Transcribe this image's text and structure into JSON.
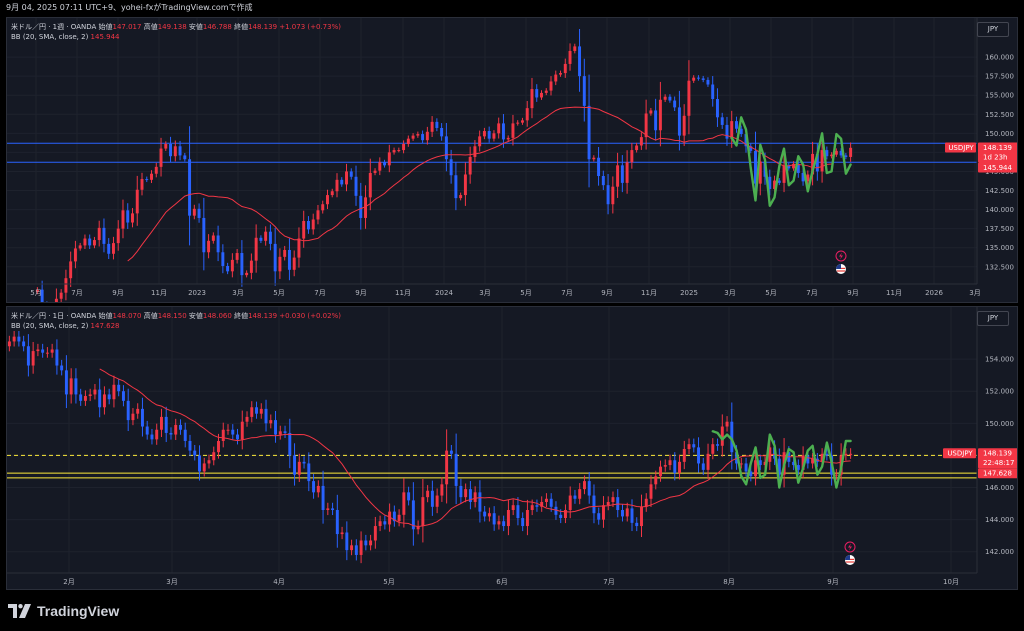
{
  "snapshot_info": "9月 04, 2025 07:11 UTC+9、yohei-fxがTradingView.comで作成",
  "brand": "TradingView",
  "colors": {
    "up": "#f23645",
    "down": "#2962ff",
    "bb": "#f23645",
    "annotation": "#4caf50",
    "hline_blue": "#2962ff",
    "hline_yellow": "#ffeb3b",
    "background": "#151924"
  },
  "icons": [
    "lightning-icon",
    "us-flag-icon",
    "logo-mark-icon"
  ],
  "top_chart": {
    "title": "米ドル／円 · 1週 · OANDA",
    "open_label": "始値",
    "open": "147.017",
    "high_label": "高値",
    "high": "149.138",
    "low_label": "安値",
    "low": "146.788",
    "close_label": "終値",
    "close": "148.139",
    "change": "+1.073 (+0.73%)",
    "indicator": "BB (20, SMA, close, 2)",
    "indicator_value": "145.944",
    "currency_button": "JPY",
    "price_tag_symbol": "USDJPY",
    "price_tag_value": "148.139",
    "price_tag_countdown": "1d 23h",
    "bb_tag_value": "145.944"
  },
  "bottom_chart": {
    "title": "米ドル／円 · 1日 · OANDA",
    "open_label": "始値",
    "open": "148.070",
    "high_label": "高値",
    "high": "148.150",
    "low_label": "安値",
    "low": "148.060",
    "close_label": "終値",
    "close": "148.139",
    "change": "+0.030 (+0.02%)",
    "indicator": "BB (20, SMA, close, 2)",
    "indicator_value": "147.628",
    "currency_button": "JPY",
    "price_tag_symbol": "USDJPY",
    "price_tag_value": "148.139",
    "price_tag_countdown": "22:48:17",
    "bb_tag_value": "147.628"
  },
  "chart_data": [
    {
      "type": "candlestick",
      "symbol": "USDJPY",
      "timeframe": "1W",
      "ylim": [
        130.5,
        162.5
      ],
      "y_ticks": [
        160.0,
        157.5,
        155.0,
        152.5,
        150.0,
        147.5,
        145.0,
        142.5,
        140.0,
        137.5,
        135.0,
        132.5
      ],
      "x_tick_labels": [
        "5月",
        "7月",
        "9月",
        "11月",
        "2023",
        "3月",
        "5月",
        "7月",
        "9月",
        "11月",
        "2024",
        "3月",
        "5月",
        "7月",
        "9月",
        "11月",
        "2025",
        "3月",
        "5月",
        "7月",
        "9月",
        "11月",
        "2026",
        "3月"
      ],
      "horizontal_lines": [
        148.7,
        146.2
      ],
      "close_series_approx": [
        129.5,
        127.5,
        126.7,
        126.0,
        128.3,
        129.1,
        131.0,
        133.2,
        134.9,
        135.3,
        136.2,
        135.3,
        136.0,
        137.6,
        135.5,
        134.2,
        135.6,
        137.5,
        139.9,
        138.3,
        139.5,
        142.6,
        144.0,
        143.9,
        144.7,
        145.6,
        148.0,
        148.6,
        147.0,
        148.3,
        147.1,
        146.6,
        139.2,
        140.1,
        138.9,
        134.4,
        135.9,
        136.6,
        134.4,
        132.6,
        131.9,
        133.4,
        134.3,
        131.4,
        131.7,
        133.3,
        136.3,
        135.9,
        137.1,
        135.5,
        131.9,
        133.8,
        134.7,
        132.1,
        133.7,
        136.2,
        138.5,
        137.4,
        138.7,
        139.9,
        140.7,
        141.9,
        142.4,
        143.9,
        143.3,
        145.0,
        144.3,
        141.8,
        138.9,
        141.6,
        144.8,
        145.1,
        146.2,
        145.8,
        147.5,
        147.8,
        147.8,
        148.6,
        149.3,
        149.7,
        149.9,
        149.1,
        150.2,
        151.5,
        150.7,
        149.6,
        146.6,
        144.5,
        141.5,
        141.9,
        144.6,
        146.9,
        148.3,
        149.6,
        150.3,
        149.3,
        150.0,
        151.3,
        149.2,
        149.4,
        151.3,
        151.4,
        151.7,
        153.3,
        155.8,
        154.7,
        155.3,
        155.6,
        156.8,
        157.7,
        157.9,
        159.1,
        160.8,
        161.4,
        157.5,
        153.6,
        146.6,
        146.8,
        144.4,
        143.2,
        140.7,
        143.0,
        145.8,
        143.5,
        146.2,
        147.8,
        148.4,
        149.5,
        152.6,
        153.0,
        150.4,
        154.4,
        154.8,
        154.3,
        153.4,
        149.7,
        152.3,
        156.9,
        157.3,
        157.2,
        157.0,
        156.4,
        154.5,
        152.1,
        151.1,
        149.3,
        151.6,
        150.6,
        149.9,
        148.3,
        147.7,
        143.4,
        146.3,
        144.3,
        142.7,
        143.8,
        143.5,
        145.8,
        145.4,
        146.0,
        144.8,
        143.7,
        144.6,
        147.3,
        145.0,
        147.8,
        147.0,
        147.2,
        147.7,
        147.1,
        146.9,
        148.1
      ],
      "bb_middle_approx": [
        null,
        null,
        null,
        null,
        null,
        null,
        null,
        null,
        null,
        null,
        null,
        null,
        null,
        null,
        null,
        null,
        null,
        null,
        null,
        133.26,
        133.76,
        134.52,
        135.39,
        136.23,
        137.05,
        137.91,
        138.76,
        139.64,
        140.19,
        140.69,
        141.24,
        141.77,
        141.97,
        142.1,
        142.15,
        141.96,
        141.75,
        141.74,
        141.66,
        141.62,
        141.54,
        141.29,
        140.81,
        140.4,
        140.25,
        140.08,
        139.74,
        139.28,
        138.77,
        138.33,
        137.77,
        137.04,
        136.52,
        136.28,
        136.05,
        136.06,
        135.9,
        135.94,
        136.09,
        136.23,
        136.73,
        137.17,
        137.46,
        137.92,
        138.56,
        139.14,
        139.56,
        139.85,
        140.12,
        140.37,
        140.77,
        141.33,
        141.71,
        142.12,
        142.7,
        143.21,
        143.67,
        144.21,
        144.65,
        145.21,
        145.68,
        146.05,
        146.41,
        146.68,
        146.91,
        147.06,
        147.19,
        147.18,
        147.18,
        147.19,
        147.16,
        147.21,
        147.3,
        147.41,
        147.6,
        147.85,
        148.09,
        148.36,
        148.69,
        148.92,
        149.21,
        149.53,
        150.03,
        150.47,
        150.89,
        151.28,
        151.74,
        152.12,
        152.59,
        152.99,
        153.25,
        153.33,
        153.39,
        153.44,
        153.43,
        153.39,
        153.38,
        153.29,
        153.16,
        152.86,
        152.6,
        152.32,
        152.08,
        151.7,
        151.28,
        150.85,
        150.56,
        150.22,
        149.76,
        149.37,
        149.11,
        149.35,
        149.29,
        149.21,
        149.07,
        149.05,
        148.84,
        149.01,
        149.0,
        149.01,
        149.04,
        149.28,
        149.37,
        149.67,
        149.83,
        149.69,
        149.53,
        149.29,
        148.99,
        148.53,
        148.2,
        147.86,
        147.45,
        147.06,
        146.68,
        146.38,
        145.96,
        145.72,
        145.74,
        145.86,
        145.91,
        145.84,
        145.74,
        145.5,
        145.49,
        145.65,
        145.92,
        145.98
      ]
    },
    {
      "type": "candlestick",
      "symbol": "USDJPY",
      "timeframe": "1D",
      "ylim": [
        140.8,
        156.0
      ],
      "y_ticks": [
        154.0,
        152.0,
        150.0,
        148.0,
        146.0,
        144.0,
        142.0
      ],
      "x_tick_labels": [
        "2月",
        "3月",
        "4月",
        "5月",
        "6月",
        "7月",
        "8月",
        "9月",
        "10月"
      ],
      "horizontal_lines": [
        148.0,
        146.9,
        146.6
      ],
      "close_series_approx": [
        155.1,
        155.4,
        155.1,
        154.8,
        153.6,
        154.5,
        154.6,
        154.4,
        154.4,
        154.6,
        153.6,
        153.3,
        151.8,
        152.8,
        151.8,
        151.4,
        151.7,
        151.8,
        152.1,
        151.0,
        151.8,
        151.5,
        152.4,
        152.0,
        151.4,
        150.2,
        150.6,
        150.9,
        149.8,
        149.3,
        149.0,
        149.6,
        150.4,
        149.4,
        149.3,
        149.9,
        149.6,
        148.9,
        148.3,
        148.0,
        147.0,
        147.5,
        147.7,
        148.2,
        148.9,
        149.6,
        149.6,
        149.3,
        149.0,
        150.1,
        150.4,
        151.0,
        150.6,
        150.9,
        150.0,
        150.2,
        149.3,
        149.5,
        149.4,
        148.0,
        146.8,
        147.6,
        147.5,
        146.4,
        145.7,
        146.1,
        144.6,
        144.7,
        144.6,
        143.1,
        143.2,
        142.1,
        142.4,
        141.8,
        142.7,
        142.4,
        142.7,
        143.6,
        143.9,
        143.7,
        144.5,
        143.9,
        144.3,
        145.7,
        145.2,
        143.4,
        143.6,
        145.4,
        145.8,
        144.8,
        145.5,
        146.2,
        148.3,
        148.1,
        146.1,
        145.4,
        145.9,
        145.1,
        145.7,
        144.5,
        144.2,
        144.4,
        143.7,
        143.9,
        143.6,
        144.6,
        144.9,
        144.1,
        143.6,
        144.6,
        144.9,
        144.8,
        145.1,
        145.3,
        144.8,
        144.3,
        144.1,
        144.6,
        145.5,
        145.3,
        145.9,
        146.4,
        145.5,
        144.4,
        144.0,
        144.9,
        145.1,
        145.4,
        144.6,
        144.2,
        144.7,
        143.8,
        143.6,
        144.8,
        145.3,
        146.2,
        146.7,
        147.3,
        147.4,
        147.7,
        146.9,
        147.6,
        148.4,
        148.7,
        148.5,
        147.5,
        147.1,
        148.1,
        148.7,
        148.6,
        149.8,
        150.1,
        148.2,
        147.5,
        147.5,
        147.0,
        146.7,
        147.7,
        147.4,
        147.6,
        148.5,
        147.8,
        146.8,
        148.2,
        147.6,
        147.4,
        147.1,
        148.0,
        147.5,
        147.8,
        147.6,
        148.1,
        148.0,
        146.8,
        146.8,
        148.0,
        148.1,
        148.1
      ]
    }
  ]
}
